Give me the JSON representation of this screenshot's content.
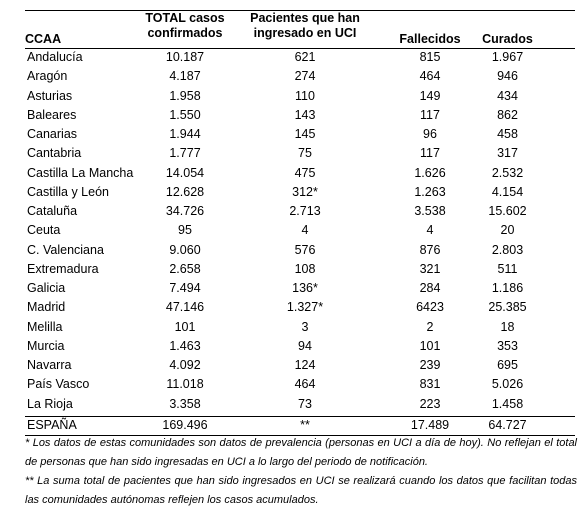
{
  "table": {
    "header": [
      "CCAA",
      "TOTAL casos confirmados",
      "Pacientes que han ingresado en UCI",
      "Fallecidos",
      "Curados"
    ],
    "rows": [
      [
        "Andalucía",
        "10.187",
        "621",
        "815",
        "1.967"
      ],
      [
        "Aragón",
        "4.187",
        "274",
        "464",
        "946"
      ],
      [
        "Asturias",
        "1.958",
        "110",
        "149",
        "434"
      ],
      [
        "Baleares",
        "1.550",
        "143",
        "117",
        "862"
      ],
      [
        "Canarias",
        "1.944",
        "145",
        "96",
        "458"
      ],
      [
        "Cantabria",
        "1.777",
        "75",
        "117",
        "317"
      ],
      [
        "Castilla La Mancha",
        "14.054",
        "475",
        "1.626",
        "2.532"
      ],
      [
        "Castilla y León",
        "12.628",
        "312*",
        "1.263",
        "4.154"
      ],
      [
        "Cataluña",
        "34.726",
        "2.713",
        "3.538",
        "15.602"
      ],
      [
        "Ceuta",
        "95",
        "4",
        "4",
        "20"
      ],
      [
        "C. Valenciana",
        "9.060",
        "576",
        "876",
        "2.803"
      ],
      [
        "Extremadura",
        "2.658",
        "108",
        "321",
        "511"
      ],
      [
        "Galicia",
        "7.494",
        "136*",
        "284",
        "1.186"
      ],
      [
        "Madrid",
        "47.146",
        "1.327*",
        "6423",
        "25.385"
      ],
      [
        "Melilla",
        "101",
        "3",
        "2",
        "18"
      ],
      [
        "Murcia",
        "1.463",
        "94",
        "101",
        "353"
      ],
      [
        "Navarra",
        "4.092",
        "124",
        "239",
        "695"
      ],
      [
        "País Vasco",
        "11.018",
        "464",
        "831",
        "5.026"
      ],
      [
        "La Rioja",
        "3.358",
        "73",
        "223",
        "1.458"
      ]
    ],
    "total": [
      "ESPAÑA",
      "169.496",
      "**",
      "17.489",
      "64.727"
    ]
  },
  "notes": [
    "* Los datos de estas comunidades son datos de prevalencia (personas en UCI a día de hoy). No reflejan el total de personas que han sido ingresadas en UCI a lo largo del periodo de notificación.",
    "** La suma total de pacientes que han sido ingresados en UCI se realizará cuando los datos que facilitan todas las comunidades autónomas reflejen los casos acumulados."
  ]
}
